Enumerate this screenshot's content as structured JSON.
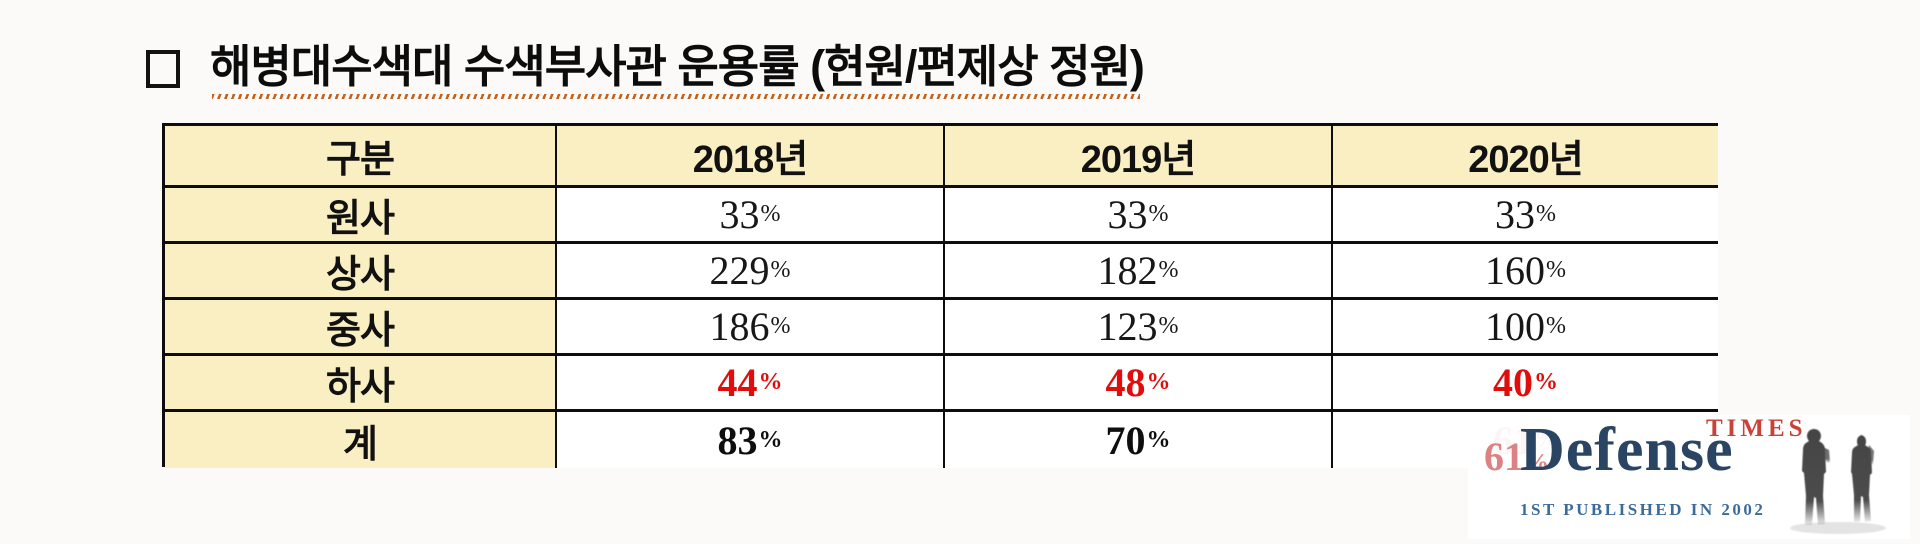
{
  "title": {
    "bullet": "checkbox",
    "text": "해병대수색대 수색부사관 운용률 (현원/편제상 정원)"
  },
  "table": {
    "headers": [
      "구분",
      "2018년",
      "2019년",
      "2020년"
    ],
    "rows": [
      {
        "label": "원사",
        "values": [
          "33%",
          "33%",
          "33%"
        ]
      },
      {
        "label": "상사",
        "values": [
          "229%",
          "182%",
          "160%"
        ]
      },
      {
        "label": "중사",
        "values": [
          "186%",
          "123%",
          "100%"
        ]
      },
      {
        "label": "하사",
        "values": [
          "44%",
          "48%",
          "40%"
        ]
      },
      {
        "label": "계",
        "values": [
          "83%",
          "70%",
          "61%"
        ]
      }
    ]
  },
  "watermark": {
    "brand": "Defense",
    "brand_superscript": "TIMES",
    "tagline": "1ST PUBLISHED IN 2002"
  },
  "colors": {
    "header_fill": "#f9efc3",
    "border": "#0d0d0d",
    "emphasis_red": "#e10d0d",
    "faded_red": "#dd8282",
    "brand_navy": "#2a4563",
    "brand_red": "#c8423a",
    "tagline_blue": "#3a6b9d",
    "underline_orange": "#c4621a"
  }
}
